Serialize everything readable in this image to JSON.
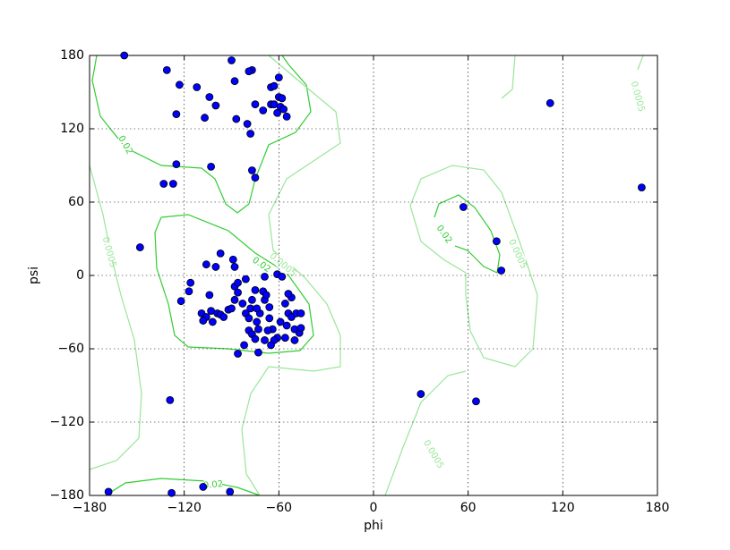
{
  "chart_data": {
    "type": "scatter",
    "x_label": "phi",
    "y_label": "psi",
    "xlim": [
      -180,
      180
    ],
    "ylim": [
      -180,
      180
    ],
    "xticks": [
      {
        "value": -180,
        "label": "−180"
      },
      {
        "value": -120,
        "label": "−120"
      },
      {
        "value": -60,
        "label": "−60"
      },
      0,
      60,
      120,
      180
    ],
    "yticks": [
      {
        "value": -180,
        "label": "−180"
      },
      {
        "value": -120,
        "label": "−120"
      },
      {
        "value": -60,
        "label": "−60"
      },
      0,
      60,
      120,
      180
    ],
    "grid": true,
    "color": "#0000ff",
    "contours": [
      {
        "level": 0.02,
        "color": "#33cc33"
      },
      {
        "level": 0.0005,
        "color": "#99e699"
      }
    ],
    "x": [
      -158,
      -131,
      -123,
      -112,
      -104,
      -100,
      -107,
      -125,
      -90,
      -88,
      -77,
      -79,
      -87,
      -80,
      -78,
      -75,
      -70,
      -65,
      -63,
      -60,
      -60,
      -58,
      -59,
      -65,
      -63,
      -57,
      -61,
      -55,
      -125,
      -103,
      -77,
      -75,
      -133,
      -127,
      -148,
      -97,
      -106,
      -100,
      -89,
      -88,
      -116,
      -117,
      -122,
      -104,
      -109,
      -106,
      -108,
      -103,
      -99,
      -102,
      -97,
      -95,
      -92,
      -90,
      -88,
      -86,
      -81,
      -86,
      -88,
      -83,
      -81,
      -79,
      -77,
      -75,
      -70,
      -69,
      -61,
      -58,
      -79,
      -77,
      -75,
      -82,
      -73,
      -86,
      -69,
      -66,
      -66,
      -64,
      -61,
      -56,
      -54,
      -52,
      -49,
      -50,
      -47,
      -56,
      -59,
      -63,
      -69,
      -67,
      -74,
      -72,
      -73,
      -65,
      -55,
      -46,
      -52,
      -54,
      -68,
      -78,
      -74,
      -46,
      -50,
      112,
      170,
      57,
      78,
      81,
      30,
      65,
      -129,
      -168,
      -108,
      -128,
      -91
    ],
    "y": [
      180,
      168,
      156,
      154,
      146,
      139,
      129,
      132,
      176,
      159,
      168,
      167,
      128,
      124,
      116,
      140,
      135,
      154,
      155,
      162,
      146,
      145,
      138,
      140,
      140,
      136,
      133,
      130,
      91,
      89,
      86,
      80,
      75,
      75,
      23,
      18,
      9,
      7,
      13,
      7,
      -6,
      -13,
      -21,
      -16,
      -31,
      -34,
      -37,
      -29,
      -31,
      -38,
      -32,
      -34,
      -28,
      -27,
      -9,
      -6,
      -3,
      -14,
      -20,
      -23,
      -31,
      -35,
      -20,
      -12,
      -13,
      -1,
      1,
      -1,
      -45,
      -48,
      -52,
      -57,
      -63,
      -64,
      -20,
      -26,
      -35,
      -44,
      -51,
      -23,
      -31,
      -34,
      -31,
      -44,
      -47,
      -51,
      -38,
      -53,
      -53,
      -45,
      -38,
      -31,
      -44,
      -57,
      -41,
      -43,
      -18,
      -15,
      -16,
      -27,
      -27,
      -31,
      -53,
      141,
      72,
      56,
      28,
      4,
      -97,
      -103,
      -102,
      -177,
      -173,
      -178,
      -177
    ]
  }
}
